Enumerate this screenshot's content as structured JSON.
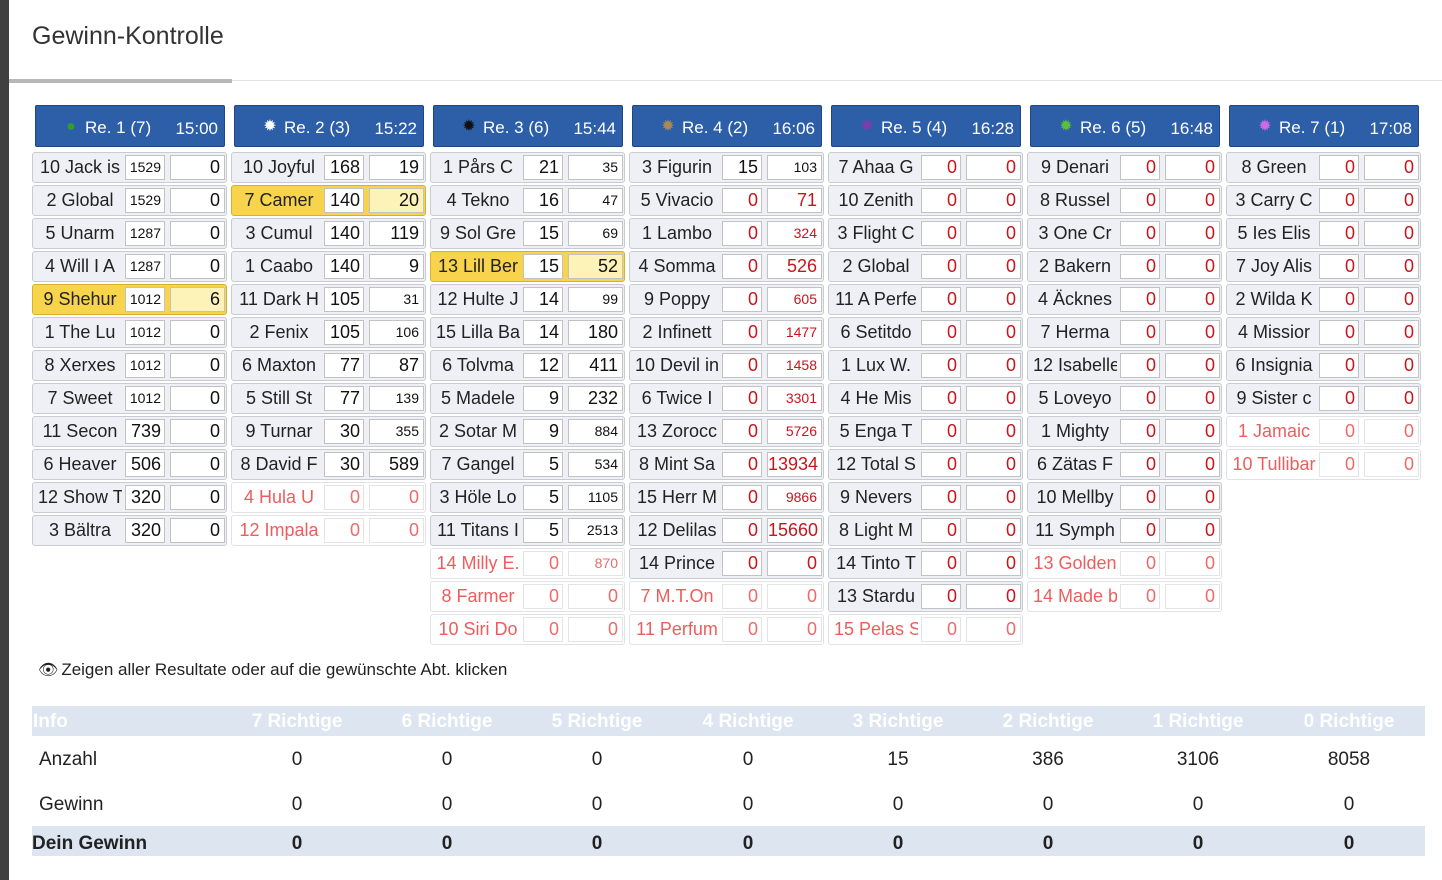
{
  "page_title": "Gewinn-Kontrolle",
  "info_text": "Zeigen aller Resultate oder auf die gewünschte Abt. klicken",
  "colors": {
    "header_blue": "#2d5ea8",
    "highlight_yellow": "#f8d44c",
    "scratched_red": "#ee5d5d"
  },
  "races": [
    {
      "label": "Re. 1 (7)",
      "time": "15:00",
      "dot": "●",
      "dot_color": "#2f9e2f",
      "horses": [
        {
          "name": "10 Jack is",
          "v1": "1529",
          "v2": "0",
          "s": "v1"
        },
        {
          "name": "2 Global",
          "v1": "1529",
          "v2": "0",
          "s": "v1"
        },
        {
          "name": "5 Unarm",
          "v1": "1287",
          "v2": "0",
          "s": "v1"
        },
        {
          "name": "4 Will I A",
          "v1": "1287",
          "v2": "0",
          "s": "v1"
        },
        {
          "name": "9 Shehur",
          "v1": "1012",
          "v2": "6",
          "s": "v1",
          "hl": true
        },
        {
          "name": "1 The Lu",
          "v1": "1012",
          "v2": "0",
          "s": "v1"
        },
        {
          "name": "8 Xerxes",
          "v1": "1012",
          "v2": "0",
          "s": "v1"
        },
        {
          "name": "7 Sweet",
          "v1": "1012",
          "v2": "0",
          "s": "v1"
        },
        {
          "name": "11 Secon",
          "v1": "739",
          "v2": "0"
        },
        {
          "name": "6 Heaver",
          "v1": "506",
          "v2": "0"
        },
        {
          "name": "12 Show T",
          "v1": "320",
          "v2": "0"
        },
        {
          "name": "3 Bältra",
          "v1": "320",
          "v2": "0"
        }
      ]
    },
    {
      "label": "Re. 2 (3)",
      "time": "15:22",
      "dot": "✹",
      "dot_color": "#ffffff",
      "horses": [
        {
          "name": "10 Joyful",
          "v1": "168",
          "v2": "19"
        },
        {
          "name": "7 Camer",
          "v1": "140",
          "v2": "20",
          "hl": true
        },
        {
          "name": "3 Cumul",
          "v1": "140",
          "v2": "119"
        },
        {
          "name": "1 Caabo",
          "v1": "140",
          "v2": "9"
        },
        {
          "name": "11 Dark H",
          "v1": "105",
          "v2": "31",
          "s": "v2"
        },
        {
          "name": "2 Fenix",
          "v1": "105",
          "v2": "106",
          "s": "v2"
        },
        {
          "name": "6 Maxton",
          "v1": "77",
          "v2": "87"
        },
        {
          "name": "5 Still St",
          "v1": "77",
          "v2": "139",
          "s": "v2"
        },
        {
          "name": "9 Turnar",
          "v1": "30",
          "v2": "355",
          "s": "v2"
        },
        {
          "name": "8 David F",
          "v1": "30",
          "v2": "589"
        },
        {
          "name": "4 Hula U",
          "v1": "0",
          "v2": "0",
          "scr": true
        },
        {
          "name": "12 Impala",
          "v1": "0",
          "v2": "0",
          "scr": true
        }
      ]
    },
    {
      "label": "Re. 3 (6)",
      "time": "15:44",
      "dot": "✹",
      "dot_color": "#111111",
      "horses": [
        {
          "name": "1 Pårs C",
          "v1": "21",
          "v2": "35",
          "s": "v2"
        },
        {
          "name": "4 Tekno",
          "v1": "16",
          "v2": "47",
          "s": "v2"
        },
        {
          "name": "9 Sol Gre",
          "v1": "15",
          "v2": "69",
          "s": "v2"
        },
        {
          "name": "13 Lill Ber",
          "v1": "15",
          "v2": "52",
          "hl": true
        },
        {
          "name": "12 Hulte J",
          "v1": "14",
          "v2": "99",
          "s": "v2"
        },
        {
          "name": "15 Lilla Ba",
          "v1": "14",
          "v2": "180"
        },
        {
          "name": "6 Tolvma",
          "v1": "12",
          "v2": "411"
        },
        {
          "name": "5 Madele",
          "v1": "9",
          "v2": "232"
        },
        {
          "name": "2 Sotar M",
          "v1": "9",
          "v2": "884",
          "s": "v2"
        },
        {
          "name": "7 Gangel",
          "v1": "5",
          "v2": "534",
          "s": "v2"
        },
        {
          "name": "3 Höle Lo",
          "v1": "5",
          "v2": "1105",
          "s": "v2"
        },
        {
          "name": "11 Titans I",
          "v1": "5",
          "v2": "2513",
          "s": "v2"
        },
        {
          "name": "14 Milly E.",
          "v1": "0",
          "v2": "870",
          "scr": true,
          "s": "v2"
        },
        {
          "name": "8 Farmer",
          "v1": "0",
          "v2": "0",
          "scr": true
        },
        {
          "name": "10 Siri Do",
          "v1": "0",
          "v2": "0",
          "scr": true
        }
      ]
    },
    {
      "label": "Re. 4 (2)",
      "time": "16:06",
      "dot": "✹",
      "dot_color": "#a98a54",
      "horses": [
        {
          "name": "3 Figurin",
          "v1": "15",
          "v2": "103",
          "s": "v2"
        },
        {
          "name": "5 Vivacio",
          "v1": "0",
          "v2": "71",
          "red": true
        },
        {
          "name": "1 Lambo",
          "v1": "0",
          "v2": "324",
          "red": true,
          "s": "v2"
        },
        {
          "name": "4 Somma",
          "v1": "0",
          "v2": "526",
          "red": true
        },
        {
          "name": "9 Poppy",
          "v1": "0",
          "v2": "605",
          "red": true,
          "s": "v2"
        },
        {
          "name": "2 Infinett",
          "v1": "0",
          "v2": "1477",
          "red": true,
          "s": "v2"
        },
        {
          "name": "10 Devil in",
          "v1": "0",
          "v2": "1458",
          "red": true,
          "s": "v2"
        },
        {
          "name": "6 Twice I",
          "v1": "0",
          "v2": "3301",
          "red": true,
          "s": "v2"
        },
        {
          "name": "13 Zorocc",
          "v1": "0",
          "v2": "5726",
          "red": true,
          "s": "v2"
        },
        {
          "name": "8 Mint Sa",
          "v1": "0",
          "v2": "13934",
          "red": true
        },
        {
          "name": "15 Herr M",
          "v1": "0",
          "v2": "9866",
          "red": true,
          "s": "v2"
        },
        {
          "name": "12 Delilas",
          "v1": "0",
          "v2": "15660",
          "red": true
        },
        {
          "name": "14 Prince",
          "v1": "0",
          "v2": "0",
          "red": true
        },
        {
          "name": "7 M.T.On",
          "v1": "0",
          "v2": "0",
          "scr": true
        },
        {
          "name": "11 Perfum",
          "v1": "0",
          "v2": "0",
          "scr": true
        }
      ]
    },
    {
      "label": "Re. 5 (4)",
      "time": "16:28",
      "dot": "✹",
      "dot_color": "#7b3ea8",
      "horses": [
        {
          "name": "7 Ahaa G",
          "v1": "0",
          "v2": "0",
          "red": true
        },
        {
          "name": "10 Zenith",
          "v1": "0",
          "v2": "0",
          "red": true
        },
        {
          "name": "3 Flight C",
          "v1": "0",
          "v2": "0",
          "red": true
        },
        {
          "name": "2 Global",
          "v1": "0",
          "v2": "0",
          "red": true
        },
        {
          "name": "11 A Perfe",
          "v1": "0",
          "v2": "0",
          "red": true
        },
        {
          "name": "6 Setitdo",
          "v1": "0",
          "v2": "0",
          "red": true
        },
        {
          "name": "1 Lux W.",
          "v1": "0",
          "v2": "0",
          "red": true
        },
        {
          "name": "4 He Mis",
          "v1": "0",
          "v2": "0",
          "red": true
        },
        {
          "name": "5 Enga T",
          "v1": "0",
          "v2": "0",
          "red": true
        },
        {
          "name": "12 Total S",
          "v1": "0",
          "v2": "0",
          "red": true
        },
        {
          "name": "9 Nevers",
          "v1": "0",
          "v2": "0",
          "red": true
        },
        {
          "name": "8 Light M",
          "v1": "0",
          "v2": "0",
          "red": true
        },
        {
          "name": "14 Tinto T",
          "v1": "0",
          "v2": "0",
          "red": true
        },
        {
          "name": "13 Stardu",
          "v1": "0",
          "v2": "0",
          "red": true
        },
        {
          "name": "15 Pelas S",
          "v1": "0",
          "v2": "0",
          "scr": true
        }
      ]
    },
    {
      "label": "Re. 6 (5)",
      "time": "16:48",
      "dot": "✹",
      "dot_color": "#5cbf3a",
      "horses": [
        {
          "name": "9 Denari",
          "v1": "0",
          "v2": "0",
          "red": true
        },
        {
          "name": "8 Russel",
          "v1": "0",
          "v2": "0",
          "red": true
        },
        {
          "name": "3 One Cr",
          "v1": "0",
          "v2": "0",
          "red": true
        },
        {
          "name": "2 Bakern",
          "v1": "0",
          "v2": "0",
          "red": true
        },
        {
          "name": "4 Äcknes",
          "v1": "0",
          "v2": "0",
          "red": true
        },
        {
          "name": "7 Herma",
          "v1": "0",
          "v2": "0",
          "red": true
        },
        {
          "name": "12 Isabelle",
          "v1": "0",
          "v2": "0",
          "red": true
        },
        {
          "name": "5 Loveyo",
          "v1": "0",
          "v2": "0",
          "red": true
        },
        {
          "name": "1 Mighty",
          "v1": "0",
          "v2": "0",
          "red": true
        },
        {
          "name": "6 Zätas F",
          "v1": "0",
          "v2": "0",
          "red": true
        },
        {
          "name": "10 Mellby",
          "v1": "0",
          "v2": "0",
          "red": true
        },
        {
          "name": "11 Symph",
          "v1": "0",
          "v2": "0",
          "red": true
        },
        {
          "name": "13 Golden",
          "v1": "0",
          "v2": "0",
          "scr": true
        },
        {
          "name": "14 Made b",
          "v1": "0",
          "v2": "0",
          "scr": true
        }
      ]
    },
    {
      "label": "Re. 7 (1)",
      "time": "17:08",
      "dot": "✹",
      "dot_color": "#d36be0",
      "horses": [
        {
          "name": "8 Green",
          "v1": "0",
          "v2": "0",
          "red": true
        },
        {
          "name": "3 Carry C",
          "v1": "0",
          "v2": "0",
          "red": true
        },
        {
          "name": "5 Ies Elis",
          "v1": "0",
          "v2": "0",
          "red": true
        },
        {
          "name": "7 Joy Alis",
          "v1": "0",
          "v2": "0",
          "red": true
        },
        {
          "name": "2 Wilda K",
          "v1": "0",
          "v2": "0",
          "red": true
        },
        {
          "name": "4 Missior",
          "v1": "0",
          "v2": "0",
          "red": true
        },
        {
          "name": "6 Insignia",
          "v1": "0",
          "v2": "0",
          "red": true
        },
        {
          "name": "9 Sister c",
          "v1": "0",
          "v2": "0",
          "red": true
        },
        {
          "name": "1 Jamaic",
          "v1": "0",
          "v2": "0",
          "scr": true
        },
        {
          "name": "10 Tullibar",
          "v1": "0",
          "v2": "0",
          "scr": true
        }
      ]
    }
  ],
  "results": {
    "headers": [
      "Info",
      "7 Richtige",
      "6 Richtige",
      "5 Richtige",
      "4 Richtige",
      "3 Richtige",
      "2 Richtige",
      "1 Richtige",
      "0 Richtige"
    ],
    "rows": [
      {
        "label": "Anzahl",
        "values": [
          "0",
          "0",
          "0",
          "0",
          "15",
          "386",
          "3106",
          "8058"
        ]
      },
      {
        "label": "Gewinn",
        "values": [
          "0",
          "0",
          "0",
          "0",
          "0",
          "0",
          "0",
          "0"
        ]
      },
      {
        "label": "Dein Gewinn",
        "values": [
          "0",
          "0",
          "0",
          "0",
          "0",
          "0",
          "0",
          "0"
        ]
      }
    ]
  }
}
